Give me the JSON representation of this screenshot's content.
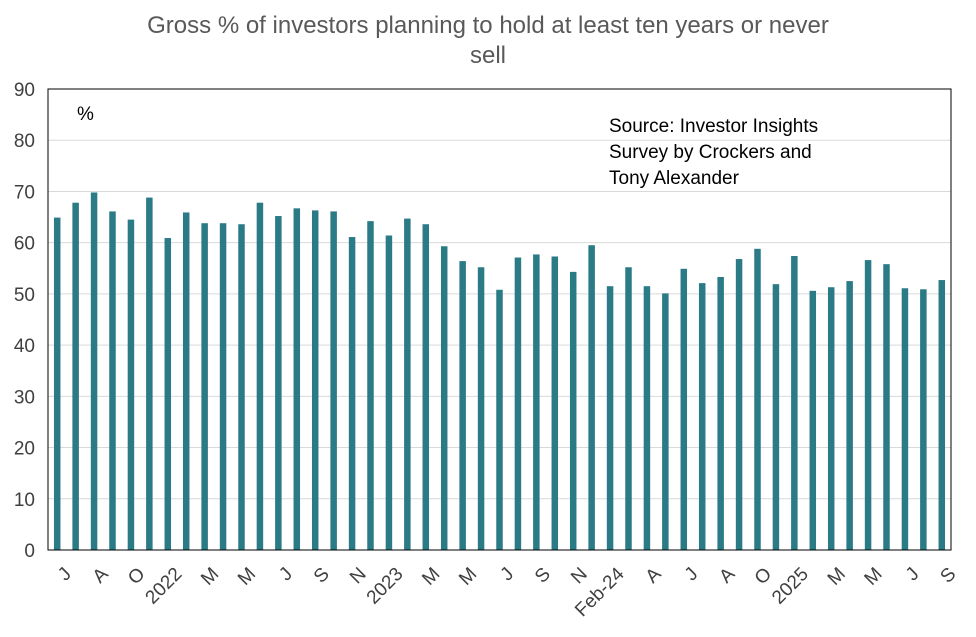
{
  "chart_data": {
    "type": "bar",
    "title_lines": [
      "Gross % of investors planning to hold at least ten years or never",
      "sell"
    ],
    "unit_label": "%",
    "annotation_lines": [
      "Source: Investor Insights",
      "Survey by Crockers and",
      "Tony Alexander"
    ],
    "xlabel": "",
    "ylabel": "",
    "ylim": [
      0,
      90
    ],
    "yticks": [
      0,
      10,
      20,
      30,
      40,
      50,
      60,
      70,
      80,
      90
    ],
    "grid": true,
    "bar_color": "#2A7B86",
    "categories": [
      "J",
      "",
      "A",
      "",
      "O",
      "",
      "2022",
      "",
      "M",
      "",
      "M",
      "",
      "J",
      "",
      "S",
      "",
      "N",
      "",
      "2023",
      "",
      "M",
      "",
      "M",
      "",
      "J",
      "",
      "S",
      "",
      "N",
      "",
      "Feb-24",
      "",
      "A",
      "",
      "J",
      "",
      "A",
      "",
      "O",
      "",
      "2025",
      "",
      "M",
      "",
      "M",
      "",
      "J",
      "",
      "S"
    ],
    "values": [
      64.9,
      67.8,
      69.8,
      66.1,
      64.5,
      68.8,
      60.9,
      65.9,
      63.8,
      63.8,
      63.6,
      67.8,
      65.2,
      66.7,
      66.3,
      66.1,
      61.1,
      64.2,
      61.4,
      64.7,
      63.6,
      59.3,
      56.4,
      55.2,
      50.8,
      57.1,
      57.7,
      57.3,
      54.3,
      59.5,
      51.5,
      55.2,
      51.5,
      50.1,
      54.9,
      52.1,
      53.3,
      56.8,
      58.8,
      51.9,
      57.4,
      50.6,
      51.3,
      52.5,
      56.6,
      55.8,
      51.1,
      50.9,
      52.7
    ]
  }
}
